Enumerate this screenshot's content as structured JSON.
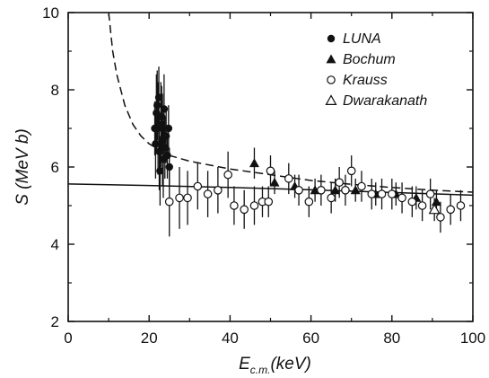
{
  "chart_data": {
    "type": "scatter",
    "title": "",
    "xlabel": "E",
    "xlabel_sub": "c.m.",
    "xlabel_suffix": "(keV)",
    "ylabel": "S (MeV b)",
    "xlim": [
      0,
      100
    ],
    "ylim": [
      2,
      10
    ],
    "xticks": [
      0,
      20,
      40,
      60,
      80,
      100
    ],
    "yticks": [
      2,
      4,
      6,
      8,
      10
    ],
    "grid": false,
    "legend_position": "top-right",
    "series": [
      {
        "name": "LUNA",
        "marker": "filled-circle",
        "points": [
          {
            "x": 21.4,
            "y": 7.0,
            "err": 0.7
          },
          {
            "x": 21.6,
            "y": 6.6,
            "err": 0.9
          },
          {
            "x": 21.8,
            "y": 7.4,
            "err": 1.0
          },
          {
            "x": 22.0,
            "y": 7.6,
            "err": 0.9
          },
          {
            "x": 22.2,
            "y": 7.0,
            "err": 1.2
          },
          {
            "x": 22.4,
            "y": 7.8,
            "err": 0.8
          },
          {
            "x": 22.5,
            "y": 6.4,
            "err": 1.0
          },
          {
            "x": 22.7,
            "y": 5.9,
            "err": 0.9
          },
          {
            "x": 22.9,
            "y": 7.1,
            "err": 1.1
          },
          {
            "x": 23.1,
            "y": 7.3,
            "err": 0.8
          },
          {
            "x": 23.3,
            "y": 6.7,
            "err": 1.2
          },
          {
            "x": 23.5,
            "y": 6.2,
            "err": 1.0
          },
          {
            "x": 23.7,
            "y": 7.5,
            "err": 0.9
          },
          {
            "x": 23.9,
            "y": 6.5,
            "err": 0.8
          },
          {
            "x": 24.2,
            "y": 6.8,
            "err": 0.7
          },
          {
            "x": 24.5,
            "y": 6.3,
            "err": 0.6
          },
          {
            "x": 24.8,
            "y": 7.0,
            "err": 0.6
          },
          {
            "x": 25.0,
            "y": 6.0,
            "err": 0.5
          }
        ]
      },
      {
        "name": "Bochum",
        "marker": "filled-triangle",
        "points": [
          {
            "x": 46.0,
            "y": 6.1,
            "err": 0.4
          },
          {
            "x": 51.0,
            "y": 5.6,
            "err": 0.3
          },
          {
            "x": 56.0,
            "y": 5.5,
            "err": 0.3
          },
          {
            "x": 61.0,
            "y": 5.4,
            "err": 0.3
          },
          {
            "x": 66.0,
            "y": 5.4,
            "err": 0.3
          },
          {
            "x": 71.0,
            "y": 5.4,
            "err": 0.3
          },
          {
            "x": 76.0,
            "y": 5.3,
            "err": 0.3
          },
          {
            "x": 81.0,
            "y": 5.3,
            "err": 0.3
          },
          {
            "x": 86.0,
            "y": 5.2,
            "err": 0.3
          },
          {
            "x": 91.0,
            "y": 5.1,
            "err": 0.3
          }
        ]
      },
      {
        "name": "Krauss",
        "marker": "open-circle",
        "points": [
          {
            "x": 25.0,
            "y": 5.1,
            "err": 0.9
          },
          {
            "x": 27.5,
            "y": 5.2,
            "err": 0.8
          },
          {
            "x": 29.5,
            "y": 5.2,
            "err": 0.7
          },
          {
            "x": 32.0,
            "y": 5.5,
            "err": 0.6
          },
          {
            "x": 34.5,
            "y": 5.3,
            "err": 0.6
          },
          {
            "x": 37.0,
            "y": 5.4,
            "err": 0.6
          },
          {
            "x": 39.5,
            "y": 5.8,
            "err": 0.6
          },
          {
            "x": 41.0,
            "y": 5.0,
            "err": 0.5
          },
          {
            "x": 43.5,
            "y": 4.9,
            "err": 0.5
          },
          {
            "x": 46.0,
            "y": 5.0,
            "err": 0.5
          },
          {
            "x": 48.0,
            "y": 5.1,
            "err": 0.4
          },
          {
            "x": 49.5,
            "y": 5.1,
            "err": 0.4
          },
          {
            "x": 50.0,
            "y": 5.9,
            "err": 0.4
          },
          {
            "x": 54.5,
            "y": 5.7,
            "err": 0.4
          },
          {
            "x": 57.0,
            "y": 5.4,
            "err": 0.4
          },
          {
            "x": 59.5,
            "y": 5.1,
            "err": 0.4
          },
          {
            "x": 62.5,
            "y": 5.4,
            "err": 0.4
          },
          {
            "x": 65.0,
            "y": 5.2,
            "err": 0.4
          },
          {
            "x": 67.0,
            "y": 5.6,
            "err": 0.4
          },
          {
            "x": 68.5,
            "y": 5.4,
            "err": 0.4
          },
          {
            "x": 70.0,
            "y": 5.9,
            "err": 0.4
          },
          {
            "x": 72.5,
            "y": 5.5,
            "err": 0.4
          },
          {
            "x": 75.0,
            "y": 5.3,
            "err": 0.4
          },
          {
            "x": 77.5,
            "y": 5.3,
            "err": 0.4
          },
          {
            "x": 80.0,
            "y": 5.3,
            "err": 0.4
          },
          {
            "x": 82.5,
            "y": 5.2,
            "err": 0.4
          },
          {
            "x": 85.0,
            "y": 5.1,
            "err": 0.4
          },
          {
            "x": 87.5,
            "y": 5.0,
            "err": 0.4
          },
          {
            "x": 89.5,
            "y": 5.3,
            "err": 0.4
          },
          {
            "x": 92.0,
            "y": 4.7,
            "err": 0.4
          },
          {
            "x": 94.5,
            "y": 4.9,
            "err": 0.4
          },
          {
            "x": 97.0,
            "y": 5.0,
            "err": 0.4
          }
        ]
      },
      {
        "name": "Dwarakanath",
        "marker": "open-triangle",
        "points": [
          {
            "x": 90.5,
            "y": 4.9,
            "err": 0.3
          }
        ]
      }
    ],
    "curves": [
      {
        "style": "dashed",
        "points": [
          [
            10,
            10.0
          ],
          [
            11,
            9.0
          ],
          [
            12,
            8.4
          ],
          [
            14,
            7.6
          ],
          [
            16,
            7.1
          ],
          [
            18,
            6.8
          ],
          [
            20,
            6.6
          ],
          [
            25,
            6.3
          ],
          [
            30,
            6.15
          ],
          [
            40,
            5.95
          ],
          [
            50,
            5.8
          ],
          [
            60,
            5.65
          ],
          [
            70,
            5.55
          ],
          [
            80,
            5.47
          ],
          [
            90,
            5.4
          ],
          [
            100,
            5.35
          ]
        ]
      },
      {
        "style": "solid",
        "points": [
          [
            0,
            5.56
          ],
          [
            20,
            5.52
          ],
          [
            40,
            5.47
          ],
          [
            60,
            5.41
          ],
          [
            80,
            5.34
          ],
          [
            100,
            5.27
          ]
        ]
      }
    ]
  }
}
